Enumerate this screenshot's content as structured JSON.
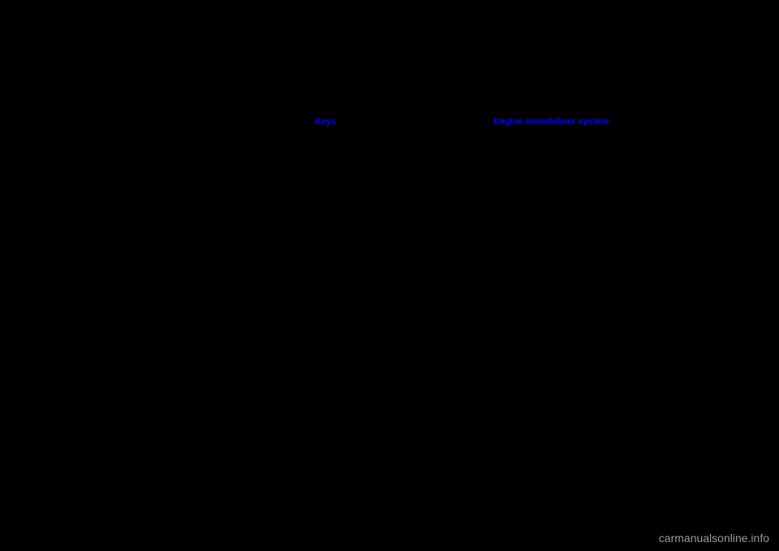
{
  "headings": {
    "first": "Keys",
    "second": "Engine immobiliser system"
  },
  "watermark": "carmanualsonline.info"
}
